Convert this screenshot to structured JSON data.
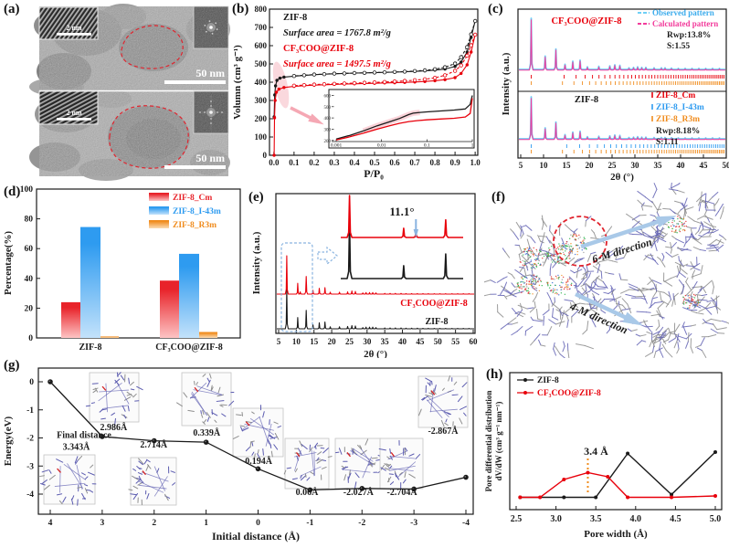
{
  "panels": {
    "a": {
      "label": "(a)",
      "scalebars": {
        "small": "2 nm",
        "large": "50 nm"
      }
    },
    "b": {
      "label": "(b)"
    },
    "c": {
      "label": "(c)"
    },
    "d": {
      "label": "(d)"
    },
    "e": {
      "label": "(e)"
    },
    "f": {
      "label": "(f)",
      "direction_labels": [
        "6-M direction",
        "4-M direction"
      ]
    },
    "g": {
      "label": "(g)"
    },
    "h": {
      "label": "(h)"
    }
  },
  "colors": {
    "red": "#e8000b",
    "black": "#1a1a1a",
    "blue": "#2e9bf0",
    "orange": "#f08c1e",
    "cyan": "#6ecff6",
    "magenta": "#f23b9b",
    "arrow_blue": "#a9c9e8",
    "pink": "#f5a8b4",
    "dash_blue": "#8ab4e0"
  },
  "chart_data": [
    {
      "id": "b",
      "type": "line",
      "xlabel": "P/P₀",
      "ylabel": "Volumn (cm³ g⁻¹)",
      "xlim": [
        -0.022,
        1.013
      ],
      "ylim": [
        0,
        800
      ],
      "xticks": [
        "0.0",
        "0.1",
        "0.2",
        "0.3",
        "0.4",
        "0.5",
        "0.6",
        "0.7",
        "0.8",
        "0.9",
        "1.0"
      ],
      "yticks": [
        0,
        100,
        200,
        300,
        400,
        500,
        600,
        700,
        800
      ],
      "annotations": [
        {
          "text": "ZIF-8",
          "color": "#1a1a1a",
          "italic": false
        },
        {
          "text": "Surface area = 1767.8 m²/g",
          "color": "#1a1a1a",
          "italic": true
        },
        {
          "text": "CF₃COO@ZIF-8",
          "color": "#e8000b",
          "italic": false
        },
        {
          "text": "Surface area = 1497.5 m²/g",
          "color": "#e8000b",
          "italic": true
        }
      ],
      "series": [
        {
          "name": "ZIF-8 adsorption",
          "color": "#1a1a1a",
          "marker": "filled",
          "x": [
            0.001,
            0.004,
            0.008,
            0.015,
            0.03,
            0.05,
            0.1,
            0.15,
            0.2,
            0.25,
            0.3,
            0.35,
            0.4,
            0.45,
            0.5,
            0.55,
            0.6,
            0.65,
            0.7,
            0.75,
            0.8,
            0.85,
            0.9,
            0.93,
            0.96,
            0.98,
            1.0
          ],
          "y": [
            210,
            330,
            380,
            410,
            422,
            428,
            433,
            437,
            441,
            444,
            446,
            448,
            450,
            451,
            452,
            454,
            455,
            457,
            459,
            462,
            466,
            472,
            486,
            510,
            565,
            645,
            735
          ]
        },
        {
          "name": "ZIF-8 desorption",
          "color": "#1a1a1a",
          "marker": "open",
          "x": [
            1.0,
            0.98,
            0.96,
            0.93,
            0.9,
            0.85,
            0.8,
            0.75,
            0.7,
            0.65,
            0.6,
            0.55,
            0.5,
            0.45,
            0.4,
            0.35,
            0.3,
            0.25,
            0.2,
            0.15,
            0.1
          ],
          "y": [
            735,
            662,
            592,
            537,
            502,
            482,
            471,
            465,
            461,
            458,
            456,
            454,
            453,
            451,
            450,
            448,
            447,
            444,
            442,
            438,
            434
          ]
        },
        {
          "name": "CF₃COO@ZIF-8 adsorption",
          "color": "#e8000b",
          "marker": "filled",
          "x": [
            0.001,
            0.003,
            0.006,
            0.012,
            0.025,
            0.05,
            0.1,
            0.15,
            0.2,
            0.25,
            0.3,
            0.35,
            0.4,
            0.45,
            0.5,
            0.55,
            0.6,
            0.65,
            0.7,
            0.75,
            0.8,
            0.85,
            0.9,
            0.93,
            0.96,
            0.98,
            1.0
          ],
          "y": [
            0,
            205,
            300,
            345,
            362,
            371,
            377,
            381,
            384,
            386,
            388,
            390,
            391,
            393,
            394,
            396,
            397,
            399,
            401,
            404,
            408,
            414,
            425,
            448,
            495,
            565,
            660
          ]
        },
        {
          "name": "CF₃COO@ZIF-8 desorption",
          "color": "#e8000b",
          "marker": "open",
          "x": [
            1.0,
            0.98,
            0.96,
            0.93,
            0.9,
            0.85,
            0.8,
            0.75,
            0.7,
            0.65,
            0.6,
            0.55,
            0.5,
            0.45,
            0.4,
            0.35,
            0.3,
            0.25,
            0.2,
            0.15,
            0.1
          ],
          "y": [
            660,
            602,
            545,
            492,
            462,
            438,
            424,
            416,
            411,
            407,
            404,
            401,
            399,
            397,
            395,
            393,
            391,
            389,
            387,
            384,
            381
          ]
        }
      ],
      "inset": {
        "xscale": "log",
        "xticks": [
          "0.001",
          "0.01",
          "0.1",
          "1"
        ],
        "yticks": [
          200,
          300,
          400,
          500,
          600
        ],
        "ylim": [
          190,
          620
        ],
        "series": [
          {
            "color": "#1a1a1a",
            "x": [
              0.001,
              0.002,
              0.004,
              0.008,
              0.015,
              0.025,
              0.04,
              0.05,
              0.07,
              0.1,
              0.2,
              0.4,
              0.7,
              0.9,
              1.0
            ],
            "y": [
              212,
              245,
              285,
              330,
              365,
              395,
              430,
              442,
              449,
              454,
              462,
              470,
              480,
              520,
              600
            ]
          },
          {
            "color": "#e8000b",
            "x": [
              0.001,
              0.002,
              0.004,
              0.008,
              0.015,
              0.025,
              0.04,
              0.06,
              0.1,
              0.2,
              0.4,
              0.7,
              0.9,
              1.0
            ],
            "y": [
              205,
              232,
              265,
              300,
              330,
              352,
              368,
              376,
              383,
              390,
              397,
              408,
              440,
              575
            ]
          }
        ]
      }
    },
    {
      "id": "c",
      "type": "xrd-refinement",
      "xlabel": "2θ (°)",
      "ylabel": "Intensity (a.u.)",
      "xlim": [
        5,
        50
      ],
      "xticks": [
        5,
        10,
        15,
        20,
        25,
        30,
        35,
        40,
        45,
        50
      ],
      "legend_top": [
        {
          "text": "Observed pattern",
          "color": "#3aabec"
        },
        {
          "text": "Calculated pattern",
          "color": "#f23b9b"
        }
      ],
      "subpanels": [
        {
          "title": "CF₃COO@ZIF-8",
          "title_color": "#e8000b",
          "rwp": "Rwp:13.8%",
          "s": "S:1.55",
          "tick_rows": [
            {
              "color": "#e8000b",
              "from": 7.3,
              "to": 49.5,
              "count": 52
            },
            {
              "color": "#f08c1e",
              "from": 7.3,
              "to": 49.5,
              "count": 58
            }
          ]
        },
        {
          "title": "ZIF-8",
          "title_color": "#1a1a1a",
          "rwp": "Rwp:8.18%",
          "s": "S:1.11",
          "tick_rows": [
            {
              "color": "#2e9bf0",
              "from": 7.3,
              "to": 49.5,
              "count": 44
            },
            {
              "color": "#f08c1e",
              "from": 7.3,
              "to": 49.5,
              "count": 58
            }
          ],
          "legend": [
            {
              "text": "ZIF-8_Cm",
              "color": "#e8000b"
            },
            {
              "text": "ZIF-8_I-43m",
              "color": "#2e9bf0"
            },
            {
              "text": "ZIF-8_R3m",
              "color": "#f08c1e"
            }
          ]
        }
      ],
      "peaks": [
        [
          7.3,
          1.0
        ],
        [
          10.35,
          0.26
        ],
        [
          12.7,
          0.4
        ],
        [
          14.7,
          0.1
        ],
        [
          16.4,
          0.16
        ],
        [
          18.0,
          0.18
        ],
        [
          19.6,
          0.05
        ],
        [
          22.1,
          0.06
        ],
        [
          24.5,
          0.07
        ],
        [
          25.6,
          0.09
        ],
        [
          26.7,
          0.08
        ],
        [
          28.7,
          0.03
        ],
        [
          29.7,
          0.04
        ],
        [
          30.6,
          0.05
        ],
        [
          31.5,
          0.04
        ],
        [
          32.4,
          0.04
        ],
        [
          34.2,
          0.03
        ],
        [
          35.8,
          0.03
        ],
        [
          36.6,
          0.03
        ],
        [
          38.0,
          0.025
        ],
        [
          39.5,
          0.02
        ],
        [
          41.0,
          0.02
        ],
        [
          42.5,
          0.02
        ],
        [
          44.0,
          0.02
        ],
        [
          45.5,
          0.02
        ],
        [
          47.0,
          0.02
        ],
        [
          48.5,
          0.02
        ]
      ]
    },
    {
      "id": "d",
      "type": "bar",
      "ylabel": "Percentage(%)",
      "ylim": [
        0,
        100
      ],
      "yticks": [
        0,
        20,
        40,
        60,
        80,
        100
      ],
      "categories": [
        "ZIF-8",
        "CF₃COO@ZIF-8"
      ],
      "series": [
        {
          "name": "ZIF-8_Cm",
          "color": "#e8232a",
          "color_light": "#fdc4c4",
          "values": [
            24,
            38.5
          ]
        },
        {
          "name": "ZIF-8_I-43m",
          "color": "#2e9bf0",
          "color_light": "#c3e2fb",
          "values": [
            74.5,
            56.5
          ]
        },
        {
          "name": "ZIF-8_R3m",
          "color": "#f08c1e",
          "color_light": "#fbdcb4",
          "values": [
            1,
            4
          ]
        }
      ]
    },
    {
      "id": "e",
      "type": "xrd-compare",
      "xlabel": "2θ (°)",
      "ylabel": "Intensity (a.u.)",
      "xlim": [
        5,
        60
      ],
      "xticks": [
        5,
        10,
        15,
        20,
        25,
        30,
        35,
        40,
        45,
        50,
        55,
        60
      ],
      "series": [
        {
          "name": "CF₃COO@ZIF-8",
          "color": "#e8000b"
        },
        {
          "name": "ZIF-8",
          "color": "#1a1a1a"
        }
      ],
      "annotation": "11.1°",
      "extra_peak": [
        11.1,
        0.06
      ],
      "peaks": [
        [
          7.3,
          1.0
        ],
        [
          10.4,
          0.28
        ],
        [
          12.8,
          0.46
        ],
        [
          14.7,
          0.1
        ],
        [
          16.5,
          0.15
        ],
        [
          18.1,
          0.17
        ],
        [
          19.6,
          0.05
        ],
        [
          22.2,
          0.05
        ],
        [
          24.5,
          0.06
        ],
        [
          25.7,
          0.08
        ],
        [
          26.7,
          0.07
        ],
        [
          28.8,
          0.03
        ],
        [
          29.7,
          0.04
        ],
        [
          30.7,
          0.04
        ],
        [
          31.6,
          0.04
        ],
        [
          32.5,
          0.03
        ],
        [
          35.0,
          0.02
        ],
        [
          36.5,
          0.02
        ],
        [
          38.0,
          0.02
        ],
        [
          39.6,
          0.02
        ],
        [
          41.0,
          0.015
        ],
        [
          42.6,
          0.015
        ],
        [
          44.2,
          0.015
        ],
        [
          45.8,
          0.012
        ],
        [
          47.3,
          0.012
        ],
        [
          49.0,
          0.01
        ],
        [
          50.6,
          0.01
        ],
        [
          52.2,
          0.01
        ],
        [
          54.0,
          0.01
        ],
        [
          55.6,
          0.01
        ],
        [
          57.2,
          0.01
        ],
        [
          58.8,
          0.01
        ]
      ],
      "inset_peaks_black": [
        [
          7.3,
          1.0
        ],
        [
          10.4,
          0.22
        ],
        [
          12.8,
          0.42
        ]
      ],
      "inset_peaks_red": [
        [
          7.3,
          1.0
        ],
        [
          10.4,
          0.22
        ],
        [
          11.1,
          0.12
        ],
        [
          12.8,
          0.42
        ]
      ]
    },
    {
      "id": "g",
      "type": "line",
      "xlabel": "Initial distance (Å)",
      "ylabel": "Energy(eV)",
      "x": [
        4,
        3,
        2,
        1,
        0,
        -1,
        -2,
        -3,
        -4
      ],
      "y": [
        0,
        -1.95,
        -2.1,
        -2.15,
        -3.1,
        -3.85,
        -3.8,
        -3.82,
        -3.4
      ],
      "xticks": [
        4,
        3,
        2,
        1,
        0,
        -1,
        -2,
        -3,
        -4
      ],
      "yticks": [
        0,
        -1,
        -2,
        -3,
        -4
      ],
      "ylim": [
        -4.6,
        0.45
      ],
      "annotations": [
        {
          "text": "Final distance",
          "ax": 3.35,
          "ay": -2.0
        },
        {
          "text": "3.343Å",
          "ax": 3.5,
          "ay": -2.42
        },
        {
          "text": "2.986Å",
          "ax": 2.78,
          "ay": -1.72
        },
        {
          "text": "2.714Å",
          "ax": 2.01,
          "ay": -2.34
        },
        {
          "text": "0.339Å",
          "ax": 0.99,
          "ay": -1.92
        },
        {
          "text": "0.194Å",
          "ax": -0.01,
          "ay": -2.93
        },
        {
          "text": "0.06Å",
          "ax": -0.94,
          "ay": -4.03
        },
        {
          "text": "-2.027Å",
          "ax": -1.93,
          "ay": -4.03
        },
        {
          "text": "-2.704Å",
          "ax": -2.77,
          "ay": -4.03
        },
        {
          "text": "-2.867Å",
          "ax": -3.56,
          "ay": -1.85
        }
      ]
    },
    {
      "id": "h",
      "type": "line",
      "xlabel": "Pore width (Å)",
      "ylabel_line1": "Pore differential distribution",
      "ylabel_line2": "dV/dW (cm³ g⁻¹ nm⁻¹)",
      "xlim": [
        2.4,
        5.1
      ],
      "ylim": [
        0,
        1
      ],
      "xticks": [
        "2.5",
        "3.0",
        "3.5",
        "4.0",
        "4.5",
        "5.0"
      ],
      "annotation": {
        "text": "3.4 Å",
        "x": 3.4
      },
      "series": [
        {
          "name": "ZIF-8",
          "color": "#1a1a1a",
          "x": [
            2.55,
            3.1,
            3.5,
            3.9,
            4.45,
            5.0
          ],
          "y": [
            0.09,
            0.09,
            0.09,
            0.41,
            0.11,
            0.42
          ]
        },
        {
          "name": "CF₃COO@ZIF-8",
          "color": "#e8000b",
          "x": [
            2.55,
            2.8,
            3.1,
            3.4,
            3.65,
            3.9,
            4.45,
            5.0
          ],
          "y": [
            0.09,
            0.09,
            0.22,
            0.27,
            0.24,
            0.09,
            0.09,
            0.1
          ]
        }
      ]
    }
  ]
}
